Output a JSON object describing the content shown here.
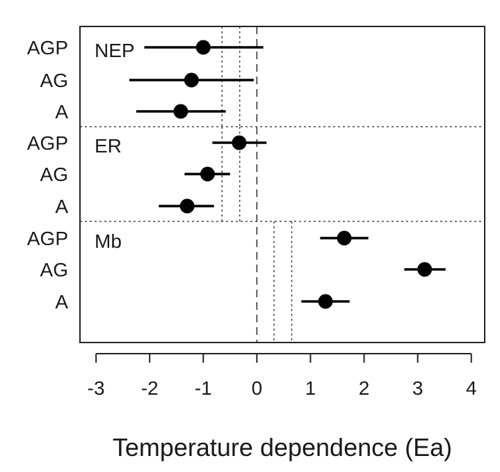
{
  "chart_data": {
    "type": "scatter",
    "subtype": "forest-plot",
    "title": "",
    "xlabel": "Temperature dependence (Ea)",
    "ylabel": "",
    "xlim": [
      -3.3,
      4.25
    ],
    "x_ticks": [
      -3,
      -2,
      -1,
      0,
      1,
      2,
      3,
      4
    ],
    "x_tick_labels": [
      "-3",
      "-2",
      "-1",
      "0",
      "1",
      "2",
      "3",
      "4"
    ],
    "grid": false,
    "legend": "none",
    "colors": {
      "points": "#000000",
      "lines": "#000000",
      "axes": "#222222"
    },
    "groups": [
      {
        "label": "NEP",
        "reference_lines": [
          -0.65,
          -0.32
        ],
        "rows": [
          {
            "label": "AGP",
            "estimate": -1.0,
            "lower": -2.1,
            "upper": 0.12
          },
          {
            "label": "AG",
            "estimate": -1.22,
            "lower": -2.38,
            "upper": -0.06
          },
          {
            "label": "A",
            "estimate": -1.42,
            "lower": -2.25,
            "upper": -0.58
          }
        ]
      },
      {
        "label": "ER",
        "reference_lines": [
          -0.65,
          -0.32
        ],
        "rows": [
          {
            "label": "AGP",
            "estimate": -0.33,
            "lower": -0.83,
            "upper": 0.18
          },
          {
            "label": "AG",
            "estimate": -0.92,
            "lower": -1.35,
            "upper": -0.5
          },
          {
            "label": "A",
            "estimate": -1.3,
            "lower": -1.83,
            "upper": -0.8
          }
        ]
      },
      {
        "label": "Mb",
        "reference_lines": [
          0.32,
          0.65
        ],
        "rows": [
          {
            "label": "AGP",
            "estimate": 1.63,
            "lower": 1.18,
            "upper": 2.08
          },
          {
            "label": "AG",
            "estimate": 3.13,
            "lower": 2.75,
            "upper": 3.52
          },
          {
            "label": "A",
            "estimate": 1.28,
            "lower": 0.83,
            "upper": 1.73
          }
        ]
      }
    ],
    "zero_line": 0
  }
}
